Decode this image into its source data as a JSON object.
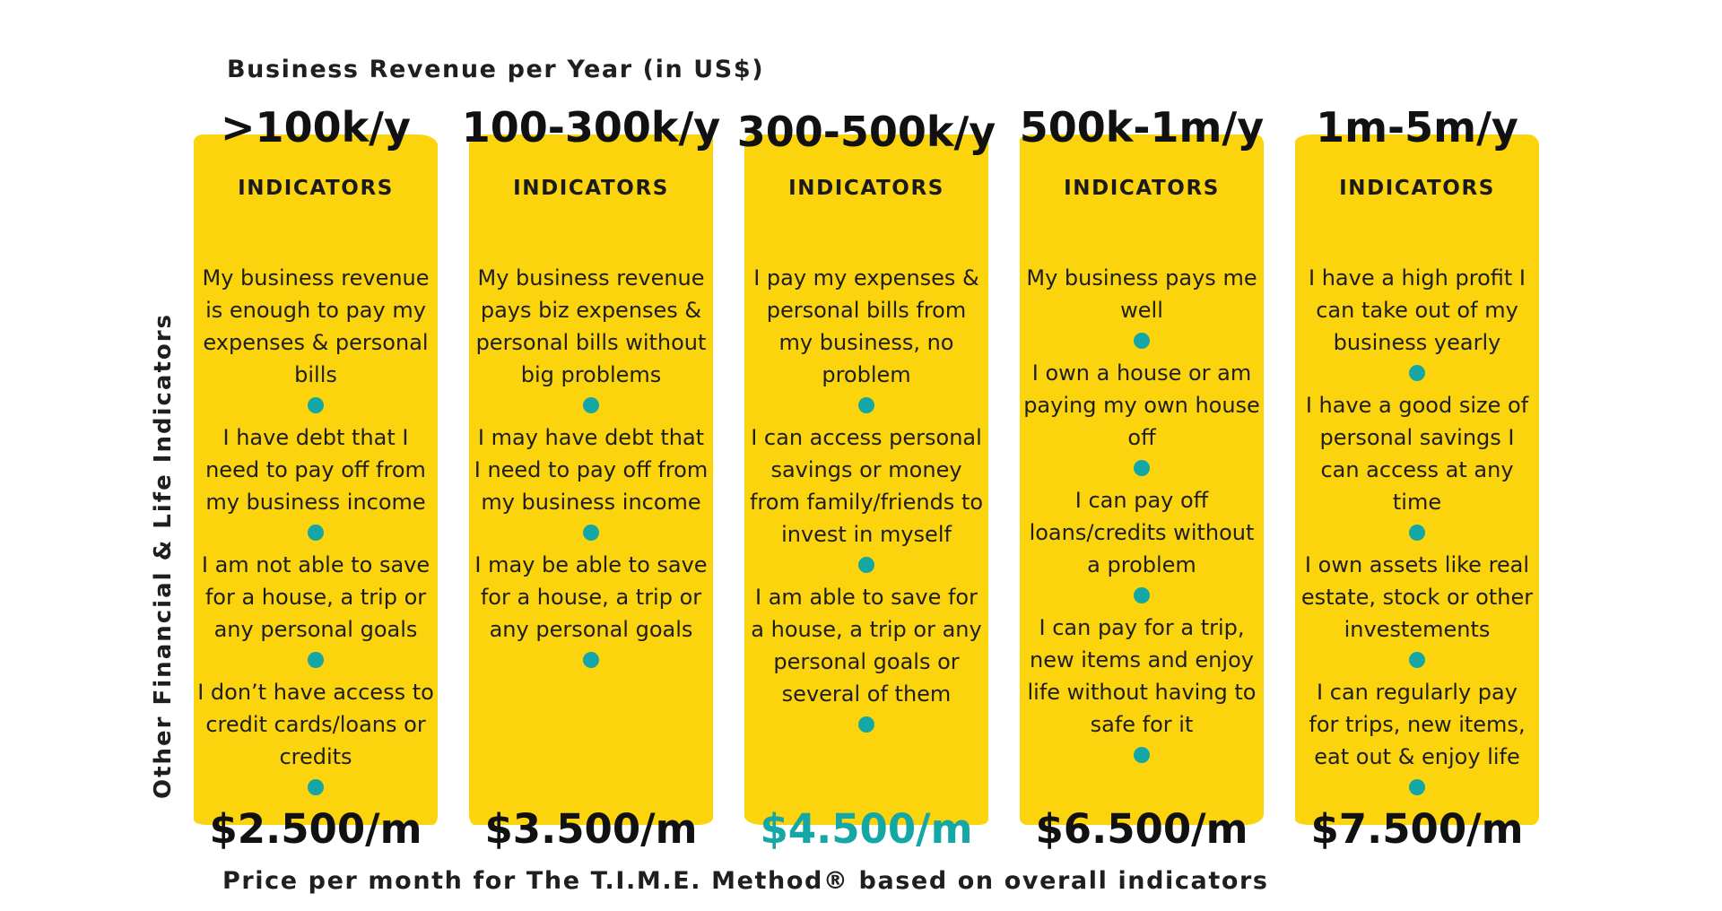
{
  "header_title": "Business Revenue per Year (in US$)",
  "side_label": "Other Financial & Life Indicators",
  "bottom_caption": "Price per month for The T.I.M.E. Method® based on overall indicators",
  "colors": {
    "panel": "#fbd40d",
    "dot": "#14a7a5",
    "highlight_price": "#14a7a5",
    "text": "#1a1a1a"
  },
  "columns": [
    {
      "range": ">100k/y",
      "heading": "INDICATORS",
      "indicators": [
        "My business revenue is enough to pay my expenses & personal bills",
        "I have debt that I need to pay off from my business income",
        "I am not able to save for a house, a trip or any personal goals",
        "I don’t have access to credit cards/loans or credits"
      ],
      "price": "$2.500/m",
      "price_highlighted": false
    },
    {
      "range": "100-300k/y",
      "heading": "INDICATORS",
      "indicators": [
        "My business revenue pays biz expenses & personal bills without big problems",
        "I may have debt that I need to pay off from my business income",
        "I may be able to save for a house, a trip or any personal goals"
      ],
      "price": "$3.500/m",
      "price_highlighted": false
    },
    {
      "range": "300-500k/y",
      "heading": "INDICATORS",
      "indicators": [
        "I pay my expenses & personal bills from my business, no problem",
        "I can access personal savings or money from family/friends to invest in myself",
        "I am able to save for a house, a trip or any personal goals or several of them"
      ],
      "price": "$4.500/m",
      "price_highlighted": true
    },
    {
      "range": "500k-1m/y",
      "heading": "INDICATORS",
      "indicators": [
        "My business pays me well",
        "I own a house or am paying my own house off",
        "I can pay off loans/credits without a problem",
        "I can pay for a trip, new items and enjoy life without having to safe for it"
      ],
      "price": "$6.500/m",
      "price_highlighted": false
    },
    {
      "range": "1m-5m/y",
      "heading": "INDICATORS",
      "indicators": [
        "I have a high profit I can take out of my business yearly",
        "I have a good size of personal savings I can access at any time",
        "I own assets like real estate, stock or other investements",
        "I can regularly pay for trips, new items, eat out & enjoy life"
      ],
      "price": "$7.500/m",
      "price_highlighted": false
    }
  ]
}
